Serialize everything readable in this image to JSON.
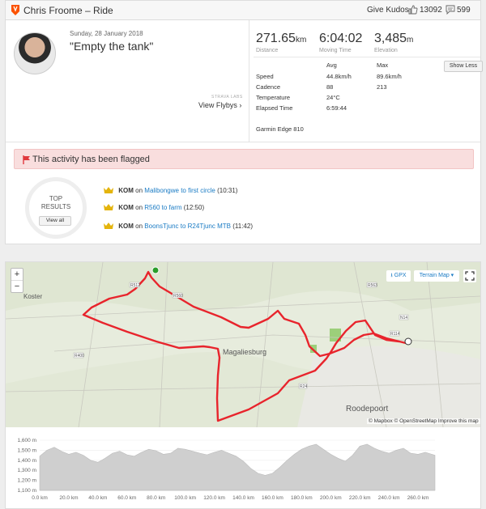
{
  "header": {
    "title": "Chris Froome – Ride",
    "give_kudos": "Give Kudos",
    "kudos_count": "13092",
    "comment_count": "599"
  },
  "activity": {
    "date": "Sunday, 28 January 2018",
    "name": "\"Empty the tank\"",
    "flyby_label": "STRAVA LABS",
    "flyby_link": "View Flybys ›"
  },
  "stats": {
    "distance": {
      "value": "271.65",
      "unit": "km",
      "label": "Distance"
    },
    "moving_time": {
      "value": "6:04:02",
      "label": "Moving Time"
    },
    "elevation": {
      "value": "3,485",
      "unit": "m",
      "label": "Elevation"
    },
    "col_avg": "Avg",
    "col_max": "Max",
    "show_less": "Show Less",
    "rows": [
      {
        "label": "Speed",
        "avg": "44.8km/h",
        "max": "89.6km/h"
      },
      {
        "label": "Cadence",
        "avg": "88",
        "max": "213"
      },
      {
        "label": "Temperature",
        "avg": "24°C",
        "max": ""
      },
      {
        "label": "Elapsed Time",
        "avg": "6:59:44",
        "max": ""
      }
    ],
    "device": "Garmin Edge 810"
  },
  "flag_banner": "This activity has been flagged",
  "top_results": {
    "line1": "TOP",
    "line2": "RESULTS",
    "view_all": "View all",
    "items": [
      {
        "badge": "KOM",
        "on": "on",
        "segment": "Malibongwe to first circle",
        "time": "(10:31)"
      },
      {
        "badge": "KOM",
        "on": "on",
        "segment": "R560 to farm",
        "time": "(12:50)"
      },
      {
        "badge": "KOM",
        "on": "on",
        "segment": "BoonsTjunc to R24Tjunc MTB",
        "time": "(11:42)"
      }
    ]
  },
  "map": {
    "zoom_in": "+",
    "zoom_out": "−",
    "gpx": "GPX",
    "map_type": "Terrain Map ▾",
    "places": {
      "koster": "Koster",
      "magaliesburg": "Magaliesburg",
      "roodepoort": "Roodepoort"
    },
    "roads": {
      "r512": "R512",
      "r560": "R560",
      "r400": "R400",
      "r24": "R24",
      "r114": "R114",
      "n14": "N14",
      "r563": "R563"
    },
    "attribution": "© Mapbox © OpenStreetMap Improve this map",
    "colors": {
      "route": "#e8242c",
      "land": "#e7ecdd",
      "accent": "#fc5200",
      "link": "#1a7bc4"
    }
  },
  "chart_data": {
    "type": "area",
    "title": "",
    "xlabel": "",
    "ylabel": "",
    "x_ticks": [
      "0.0 km",
      "20.0 km",
      "40.0 km",
      "60.0 km",
      "80.0 km",
      "100.0 km",
      "120.0 km",
      "140.0 km",
      "160.0 km",
      "180.0 km",
      "200.0 km",
      "220.0 km",
      "240.0 km",
      "260.0 km"
    ],
    "y_ticks": [
      "1,600 m",
      "1,500 m",
      "1,400 m",
      "1,300 m",
      "1,200 m",
      "1,100 m"
    ],
    "xlim": [
      0,
      271.65
    ],
    "ylim": [
      1100,
      1600
    ],
    "x": [
      0,
      5,
      10,
      15,
      20,
      25,
      30,
      35,
      40,
      45,
      50,
      55,
      60,
      65,
      70,
      75,
      80,
      85,
      90,
      95,
      100,
      105,
      110,
      115,
      120,
      125,
      130,
      135,
      140,
      145,
      150,
      155,
      160,
      165,
      170,
      175,
      180,
      185,
      190,
      195,
      200,
      205,
      210,
      215,
      220,
      225,
      230,
      235,
      240,
      245,
      250,
      255,
      260,
      265,
      271.65
    ],
    "y": [
      1440,
      1500,
      1530,
      1490,
      1460,
      1480,
      1450,
      1400,
      1380,
      1420,
      1470,
      1490,
      1455,
      1440,
      1480,
      1510,
      1495,
      1460,
      1470,
      1520,
      1510,
      1490,
      1470,
      1455,
      1480,
      1500,
      1470,
      1440,
      1390,
      1320,
      1270,
      1250,
      1270,
      1330,
      1400,
      1460,
      1510,
      1540,
      1560,
      1510,
      1460,
      1420,
      1390,
      1450,
      1540,
      1560,
      1520,
      1490,
      1470,
      1500,
      1520,
      1470,
      1460,
      1480,
      1450
    ]
  }
}
